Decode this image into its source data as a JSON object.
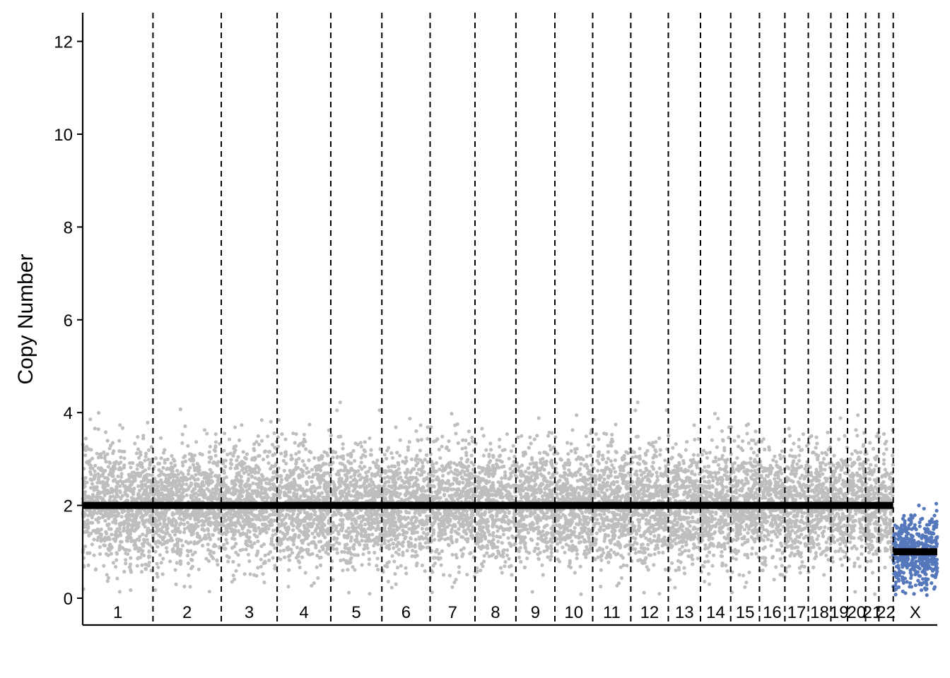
{
  "chart_data": {
    "type": "scatter",
    "title": "",
    "xlabel": "",
    "ylabel": "Copy Number",
    "ylim": [
      -0.6,
      12.6
    ],
    "yticks": [
      0,
      2,
      4,
      6,
      8,
      10,
      12
    ],
    "grid": false,
    "legend": "none",
    "chromosomes": [
      "1",
      "2",
      "3",
      "4",
      "5",
      "6",
      "7",
      "8",
      "9",
      "10",
      "11",
      "12",
      "13",
      "14",
      "15",
      "16",
      "17",
      "18",
      "19",
      "20",
      "21",
      "22",
      "X"
    ],
    "chromosome_lengths_mb": [
      249,
      242,
      198,
      190,
      181,
      171,
      159,
      145,
      138,
      134,
      135,
      133,
      114,
      107,
      102,
      90,
      83,
      80,
      59,
      64,
      47,
      51,
      156
    ],
    "segments": [
      {
        "chrom": "1-22",
        "copy_number": 2
      },
      {
        "chrom": "X",
        "copy_number": 1
      }
    ],
    "point_summary": {
      "autosomes": {
        "center": 2,
        "spread_range": [
          0.1,
          5.2
        ],
        "color": "#bebebe"
      },
      "X": {
        "center": 1,
        "spread_range": [
          0.1,
          2.9
        ],
        "color": "#5577bb"
      }
    },
    "colors": {
      "autosome_points": "#bebebe",
      "x_points": "#5577bb",
      "segment_line": "#000000",
      "boundary_line": "#000000"
    }
  }
}
